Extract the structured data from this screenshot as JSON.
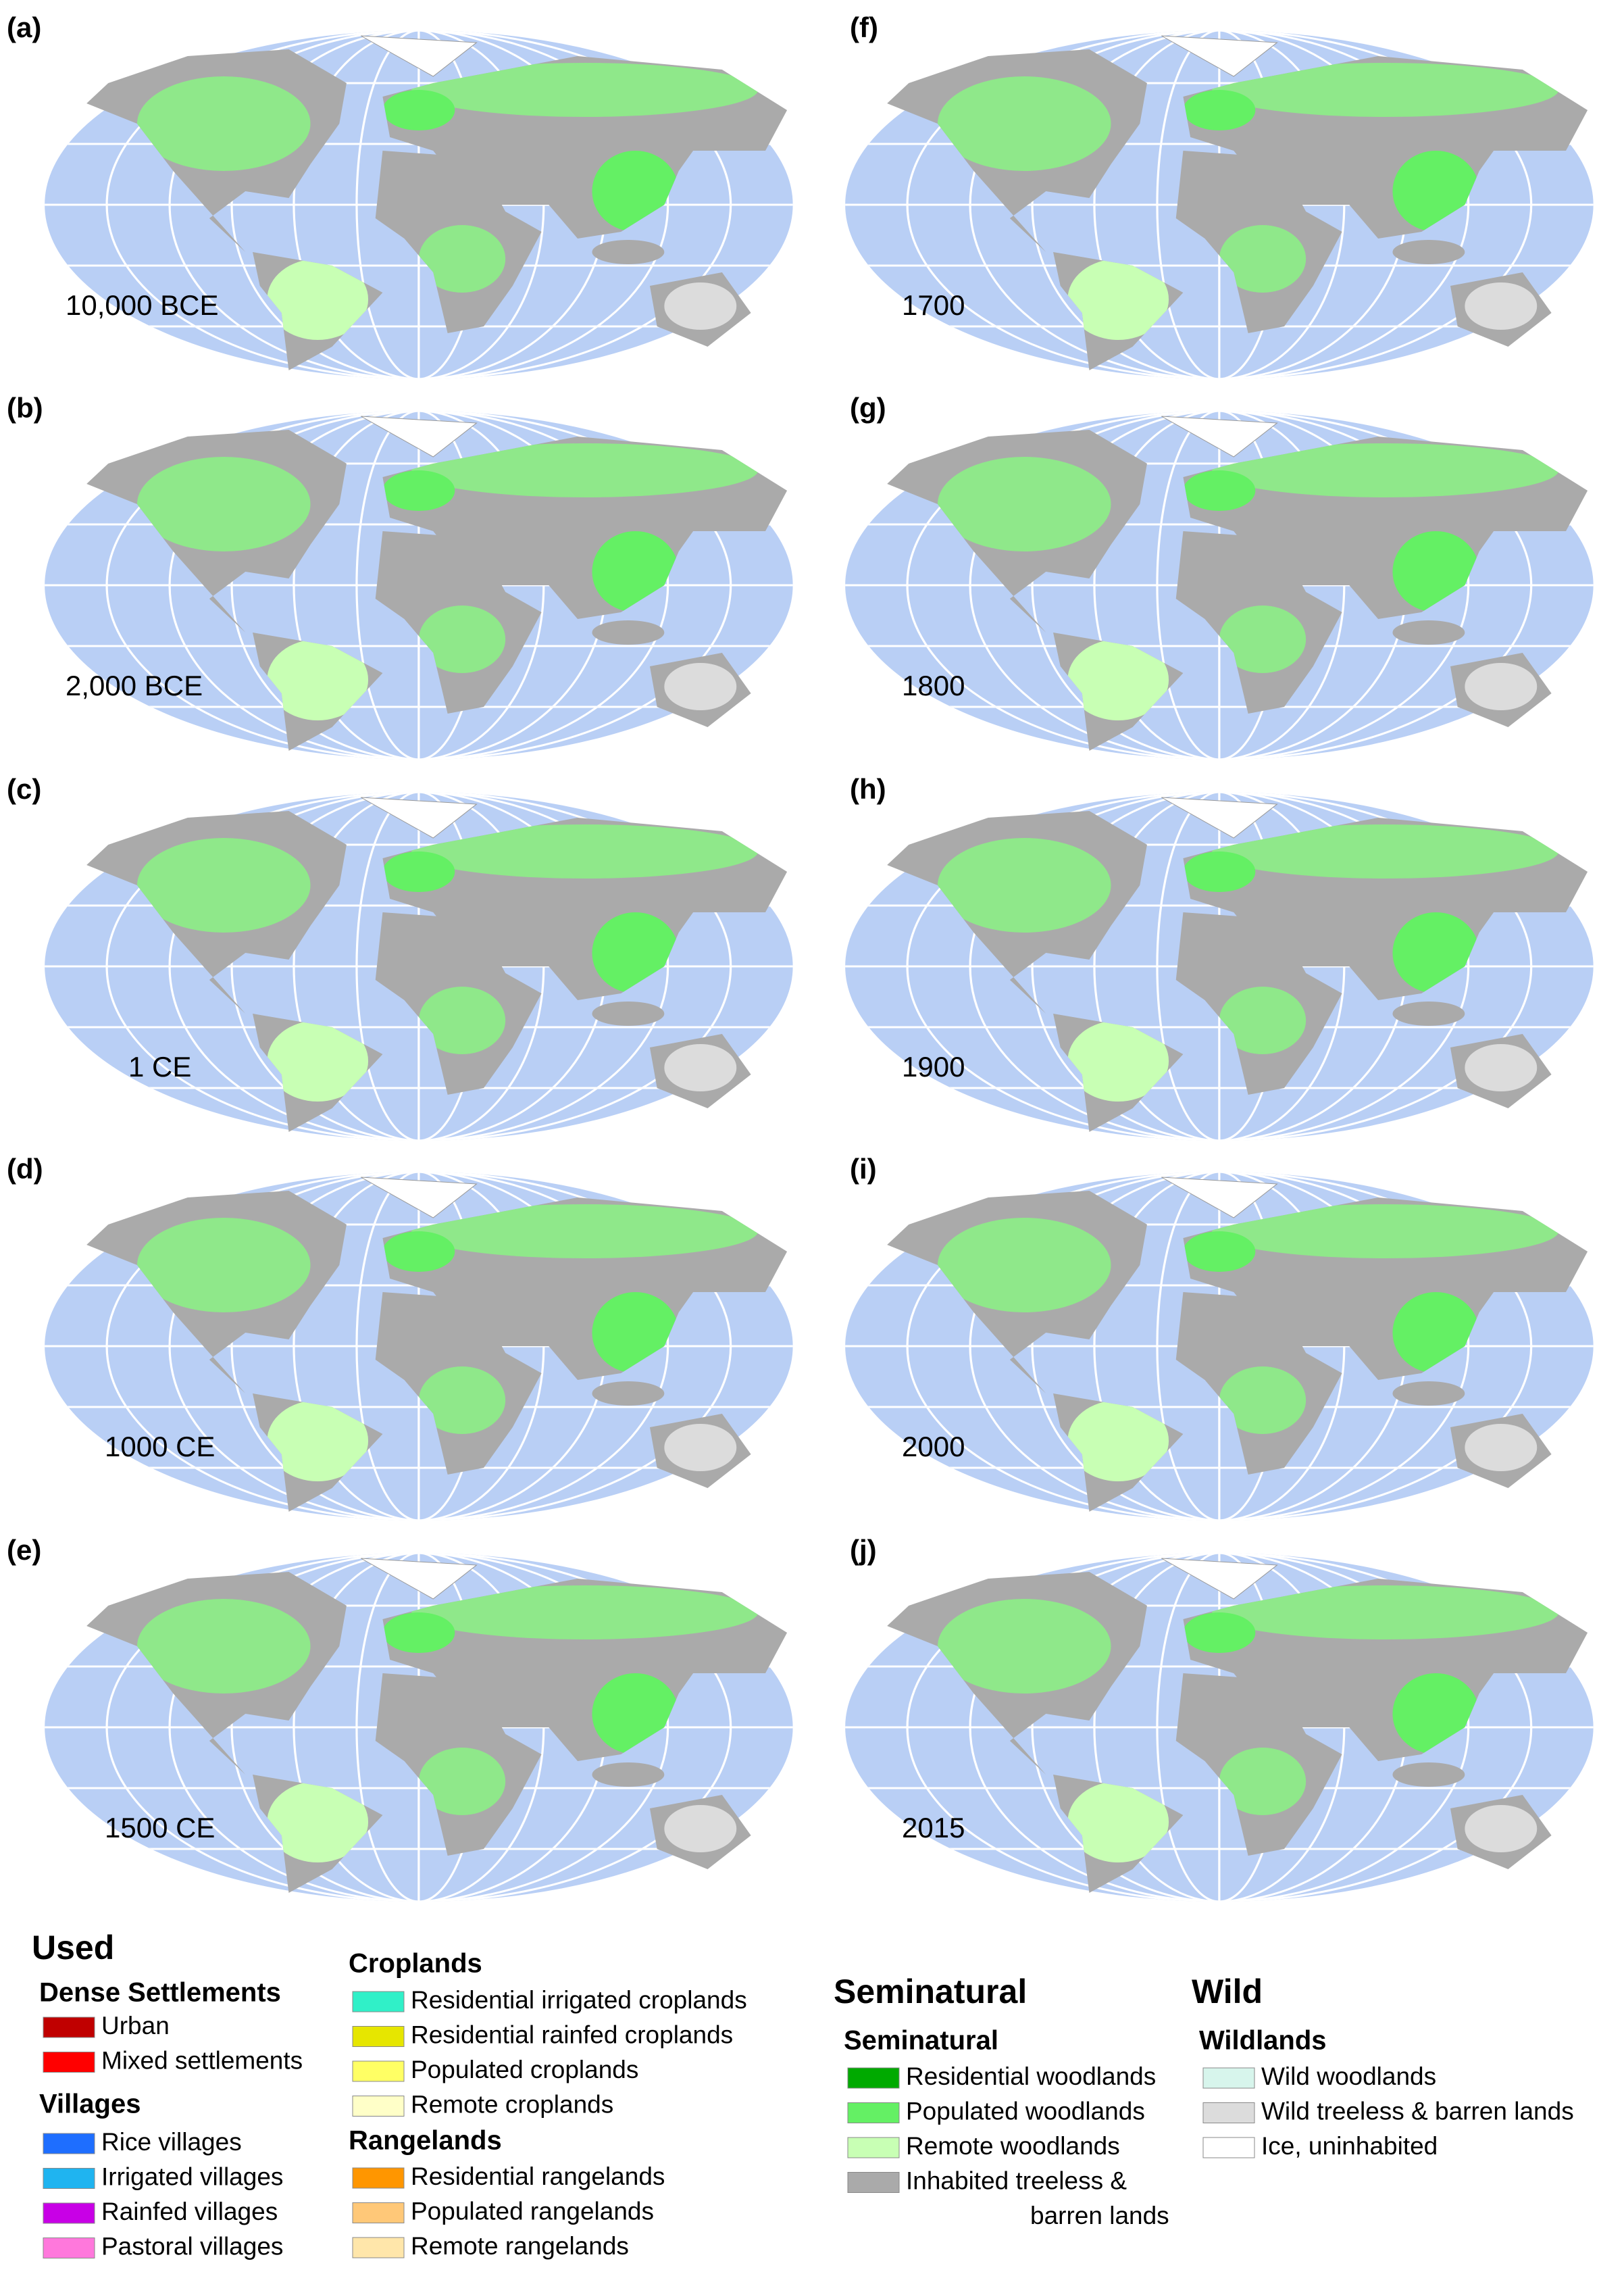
{
  "panels": [
    {
      "label": "(a)",
      "year": "10,000 BCE"
    },
    {
      "label": "(b)",
      "year": "2,000 BCE"
    },
    {
      "label": "(c)",
      "year": "1 CE"
    },
    {
      "label": "(d)",
      "year": "1000 CE"
    },
    {
      "label": "(e)",
      "year": "1500 CE"
    },
    {
      "label": "(f)",
      "year": "1700"
    },
    {
      "label": "(g)",
      "year": "1800"
    },
    {
      "label": "(h)",
      "year": "1900"
    },
    {
      "label": "(i)",
      "year": "2000"
    },
    {
      "label": "(j)",
      "year": "2015"
    }
  ],
  "legend": {
    "used": {
      "title": "Used",
      "groups": [
        {
          "title": "Dense Settlements",
          "items": [
            {
              "name": "Urban",
              "color": "#c00000"
            },
            {
              "name": "Mixed settlements",
              "color": "#ff0000"
            }
          ]
        },
        {
          "title": "Villages",
          "items": [
            {
              "name": "Rice villages",
              "color": "#1e6eff"
            },
            {
              "name": "Irrigated villages",
              "color": "#1fb4f0"
            },
            {
              "name": "Rainfed villages",
              "color": "#c800e6"
            },
            {
              "name": "Pastoral villages",
              "color": "#ff78dc"
            }
          ]
        },
        {
          "title": "Croplands",
          "items": [
            {
              "name": "Residential irrigated croplands",
              "color": "#30f0c8"
            },
            {
              "name": "Residential rainfed croplands",
              "color": "#e6e600"
            },
            {
              "name": "Populated croplands",
              "color": "#ffff64"
            },
            {
              "name": "Remote croplands",
              "color": "#ffffc8"
            }
          ]
        },
        {
          "title": "Rangelands",
          "items": [
            {
              "name": "Residential rangelands",
              "color": "#ff9600"
            },
            {
              "name": "Populated rangelands",
              "color": "#ffc878"
            },
            {
              "name": "Remote rangelands",
              "color": "#ffe6aa"
            }
          ]
        }
      ]
    },
    "seminatural": {
      "title": "Seminatural",
      "groups": [
        {
          "title": "Seminatural",
          "items": [
            {
              "name": "Residential woodlands",
              "color": "#00aa00"
            },
            {
              "name": "Populated woodlands",
              "color": "#64f064"
            },
            {
              "name": "Remote woodlands",
              "color": "#c8ffb4"
            },
            {
              "name": [
                "Inhabited treeless &",
                "barren lands"
              ],
              "color": "#aaaaaa"
            }
          ]
        }
      ]
    },
    "wild": {
      "title": "Wild",
      "groups": [
        {
          "title": "Wildlands",
          "items": [
            {
              "name": "Wild woodlands",
              "color": "#d7f5ec"
            },
            {
              "name": "Wild treeless & barren lands",
              "color": "#dcdcdc"
            },
            {
              "name": "Ice, uninhabited",
              "color": "#ffffff"
            }
          ]
        }
      ]
    }
  }
}
